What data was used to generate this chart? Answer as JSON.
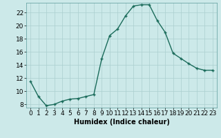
{
  "x": [
    0,
    1,
    2,
    3,
    4,
    5,
    6,
    7,
    8,
    9,
    10,
    11,
    12,
    13,
    14,
    15,
    16,
    17,
    18,
    19,
    20,
    21,
    22,
    23
  ],
  "y": [
    11.5,
    9.2,
    7.8,
    8.0,
    8.5,
    8.8,
    8.9,
    9.2,
    9.5,
    15.0,
    18.5,
    19.5,
    21.5,
    23.0,
    23.2,
    23.2,
    20.8,
    19.0,
    15.8,
    15.0,
    14.2,
    13.5,
    13.2,
    13.2
  ],
  "xlabel": "Humidex (Indice chaleur)",
  "xlim": [
    -0.5,
    23.5
  ],
  "ylim": [
    7.5,
    23.5
  ],
  "yticks": [
    8,
    10,
    12,
    14,
    16,
    18,
    20,
    22
  ],
  "xtick_labels": [
    "0",
    "1",
    "2",
    "3",
    "4",
    "5",
    "6",
    "7",
    "8",
    "9",
    "10",
    "11",
    "12",
    "13",
    "14",
    "15",
    "16",
    "17",
    "18",
    "19",
    "20",
    "21",
    "22",
    "23"
  ],
  "line_color": "#1a6b5a",
  "marker": "+",
  "bg_color": "#cce9e9",
  "grid_color": "#aacfcf",
  "label_fontsize": 7,
  "tick_fontsize": 6.5
}
